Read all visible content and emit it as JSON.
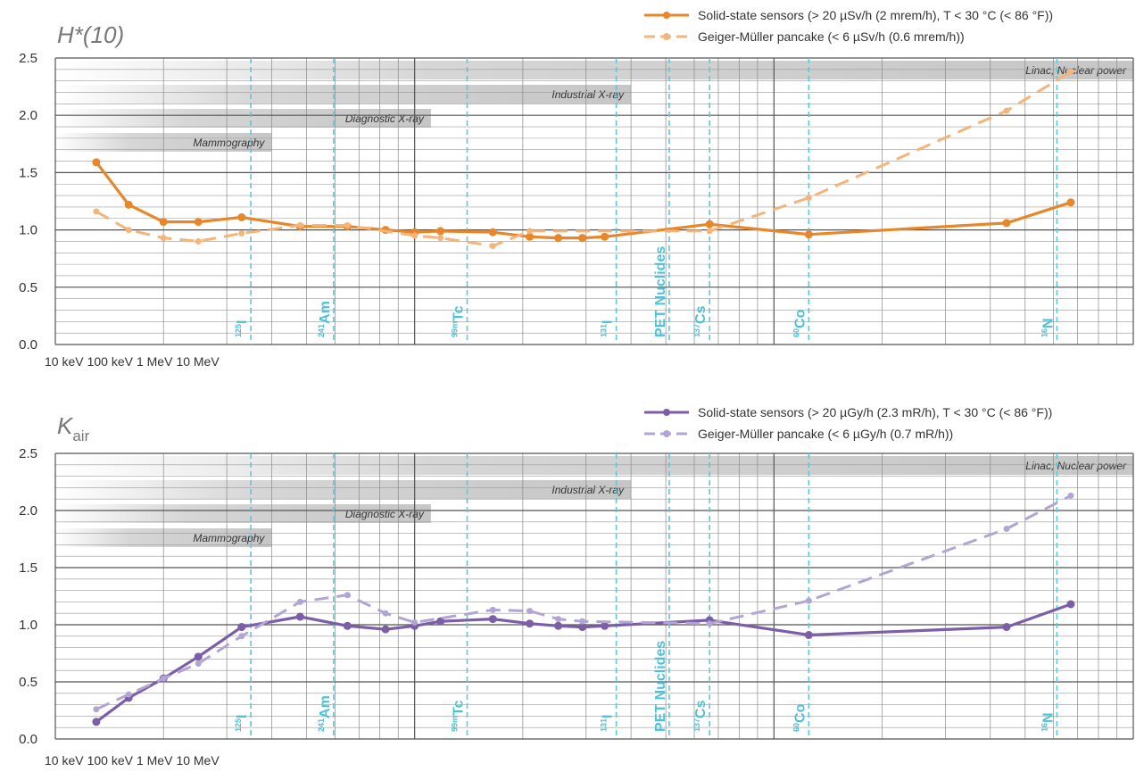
{
  "chart_data": [
    {
      "type": "line",
      "title": "H*(10)",
      "xscale": "log",
      "xlim": [
        10,
        10000
      ],
      "xticks": [
        {
          "value": 10,
          "label": "10 keV"
        },
        {
          "value": 100,
          "label": "100 keV"
        },
        {
          "value": 1000,
          "label": "1 MeV"
        },
        {
          "value": 10000,
          "label": "10 MeV"
        }
      ],
      "ylim": [
        0,
        2.5
      ],
      "yticks": [
        {
          "value": 0,
          "label": "0.0"
        },
        0.5,
        {
          "value": 1,
          "label": "1.0"
        },
        1.5,
        {
          "value": 2,
          "label": "2.0"
        },
        2.5
      ],
      "grid": true,
      "minor_grid_step": 0.1,
      "legend": "top-right",
      "series": [
        {
          "name": "Solid-state sensors (> 20 µSv/h (2 mrem/h), T < 30 °C (< 86 °F))",
          "color": "#e8872a",
          "dashed": false,
          "x": [
            13,
            16,
            20,
            25,
            33,
            48,
            65,
            83,
            100,
            118,
            165,
            209,
            251,
            293,
            338,
            662,
            1250,
            4440,
            6700
          ],
          "values": [
            1.59,
            1.22,
            1.07,
            1.07,
            1.11,
            1.03,
            1.03,
            1.0,
            0.98,
            0.99,
            0.98,
            0.94,
            0.93,
            0.93,
            0.94,
            1.05,
            0.96,
            1.06,
            1.24
          ]
        },
        {
          "name": "Geiger-Müller pancake (< 6 µSv/h (0.6 mrem/h))",
          "color": "#f4b47a",
          "dashed": true,
          "x": [
            13,
            16,
            20,
            25,
            33,
            48,
            65,
            100,
            118,
            165,
            209,
            662,
            1250,
            4440,
            6700
          ],
          "values": [
            1.16,
            1.0,
            0.93,
            0.9,
            0.97,
            1.04,
            1.04,
            0.95,
            0.93,
            0.86,
            0.99,
            0.99,
            1.28,
            2.04,
            2.38
          ]
        }
      ],
      "ranges": [
        {
          "label": "Linac, Nuclear power",
          "end": 10000
        },
        {
          "label": "Industrial X-ray",
          "end": 400
        },
        {
          "label": "Diagnostic X-ray",
          "end": 111
        },
        {
          "label": "Mammography",
          "end": 40
        }
      ],
      "nuclides": [
        {
          "mass": "125",
          "symbol": "I",
          "x": 35
        },
        {
          "mass": "241",
          "symbol": "Am",
          "x": 59.5
        },
        {
          "mass": "99m",
          "symbol": "Tc",
          "x": 140
        },
        {
          "mass": "131",
          "symbol": "I",
          "x": 364
        },
        {
          "symbol": "PET Nuclides",
          "x": 511
        },
        {
          "mass": "137",
          "symbol": "Cs",
          "x": 662
        },
        {
          "mass": "60",
          "symbol": "Co",
          "x": 1250
        },
        {
          "mass": "16",
          "symbol": "N",
          "x": 6130
        }
      ]
    },
    {
      "type": "line",
      "title": "K",
      "title_subscript": "air",
      "xscale": "log",
      "xlim": [
        10,
        10000
      ],
      "xticks": [
        {
          "value": 10,
          "label": "10 keV"
        },
        {
          "value": 100,
          "label": "100 keV"
        },
        {
          "value": 1000,
          "label": "1 MeV"
        },
        {
          "value": 10000,
          "label": "10 MeV"
        }
      ],
      "ylim": [
        0,
        2.5
      ],
      "yticks": [
        {
          "value": 0,
          "label": "0.0"
        },
        0.5,
        {
          "value": 1,
          "label": "1.0"
        },
        1.5,
        {
          "value": 2,
          "label": "2.0"
        },
        2.5
      ],
      "grid": true,
      "minor_grid_step": 0.1,
      "legend": "top-right",
      "series": [
        {
          "name": "Solid-state sensors (> 20 µGy/h (2.3 mR/h), T < 30 °C (< 86 °F))",
          "color": "#7b5ea7",
          "dashed": false,
          "x": [
            13,
            16,
            20,
            25,
            33,
            48,
            65,
            83,
            100,
            118,
            165,
            209,
            251,
            293,
            338,
            662,
            1250,
            4440,
            6700
          ],
          "values": [
            0.15,
            0.36,
            0.53,
            0.72,
            0.98,
            1.07,
            0.99,
            0.96,
            0.99,
            1.03,
            1.05,
            1.01,
            0.99,
            0.98,
            0.99,
            1.04,
            0.91,
            0.98,
            1.18
          ]
        },
        {
          "name": "Geiger-Müller pancake (< 6 µGy/h (0.7 mR/h))",
          "color": "#b3a5d3",
          "dashed": true,
          "x": [
            13,
            16,
            20,
            25,
            33,
            48,
            65,
            83,
            100,
            165,
            209,
            251,
            293,
            662,
            1250,
            4440,
            6700
          ],
          "values": [
            0.26,
            0.39,
            0.53,
            0.66,
            0.9,
            1.2,
            1.26,
            1.1,
            1.02,
            1.13,
            1.12,
            1.05,
            1.03,
            1.01,
            1.21,
            1.84,
            2.13
          ]
        }
      ],
      "ranges": [
        {
          "label": "Linac, Nuclear power",
          "end": 10000
        },
        {
          "label": "Industrial X-ray",
          "end": 400
        },
        {
          "label": "Diagnostic X-ray",
          "end": 111
        },
        {
          "label": "Mammography",
          "end": 40
        }
      ],
      "nuclides": [
        {
          "mass": "125",
          "symbol": "I",
          "x": 35
        },
        {
          "mass": "241",
          "symbol": "Am",
          "x": 59.5
        },
        {
          "mass": "99m",
          "symbol": "Tc",
          "x": 140
        },
        {
          "mass": "131",
          "symbol": "I",
          "x": 364
        },
        {
          "symbol": "PET Nuclides",
          "x": 511
        },
        {
          "mass": "137",
          "symbol": "Cs",
          "x": 662
        },
        {
          "mass": "60",
          "symbol": "Co",
          "x": 1250
        },
        {
          "mass": "16",
          "symbol": "N",
          "x": 6130
        }
      ]
    }
  ]
}
